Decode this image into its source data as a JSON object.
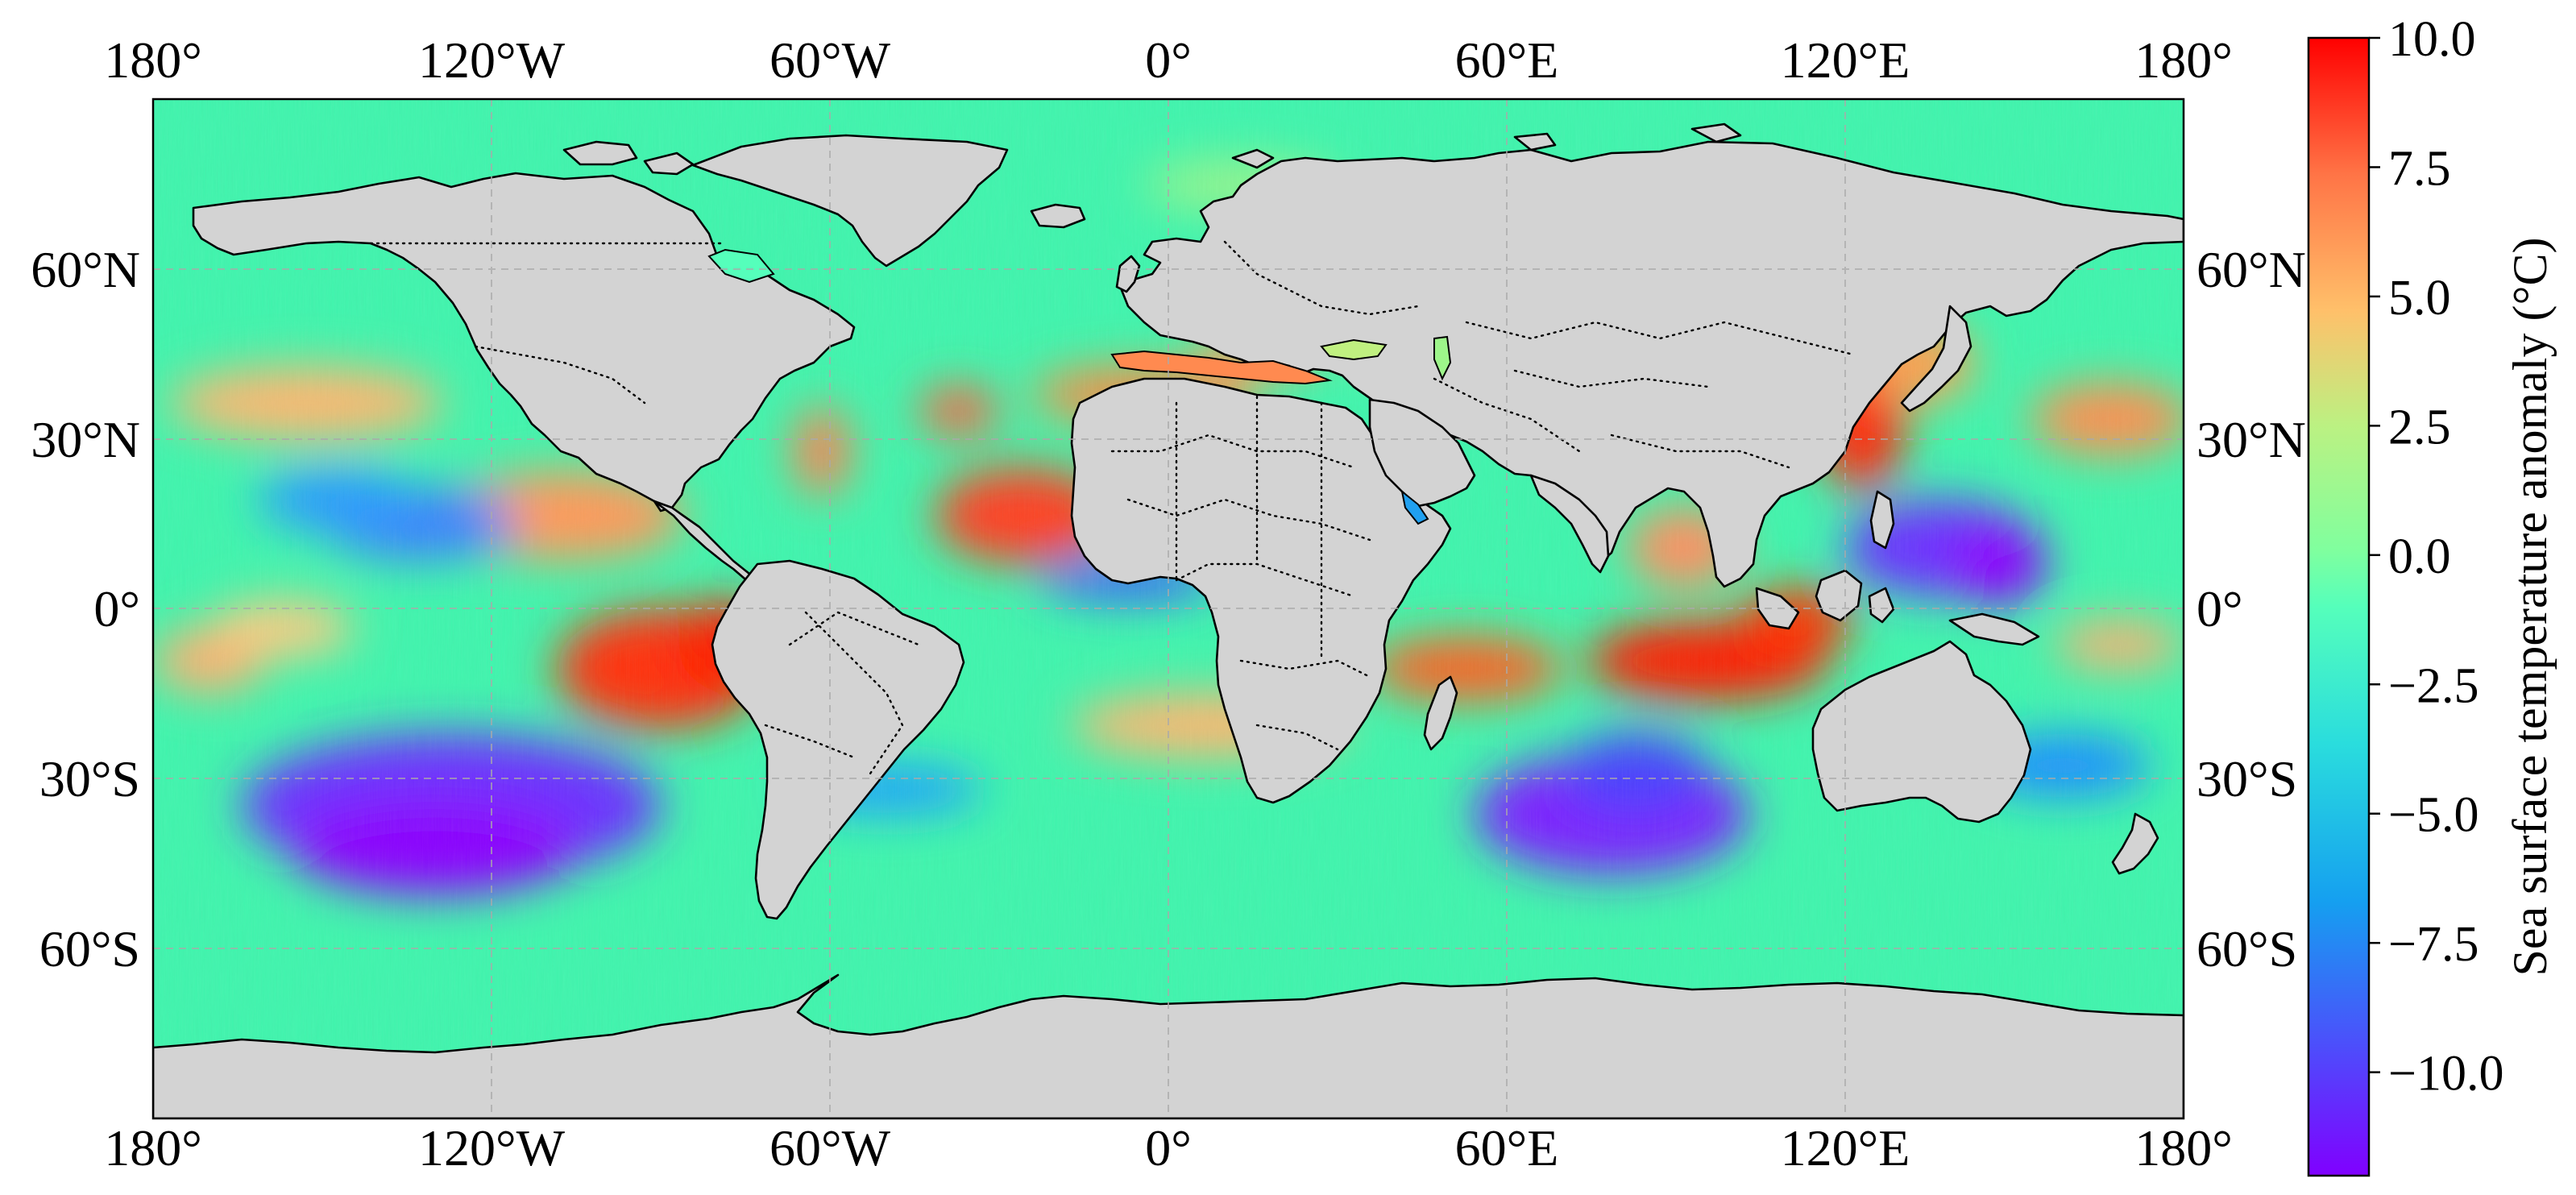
{
  "map": {
    "projection": "PlateCarree",
    "extent_lon": [
      -180,
      180
    ],
    "extent_lat": [
      -90,
      90
    ],
    "land_color": "#d3d3d3",
    "coastline_color": "#000000",
    "borders_style": "dotted",
    "gridlines": "dashed-grey",
    "lon_ticks_top": [
      "180°",
      "120°W",
      "60°W",
      "0°",
      "60°E",
      "120°E",
      "180°"
    ],
    "lon_ticks_bottom": [
      "180°",
      "120°W",
      "60°W",
      "0°",
      "60°E",
      "120°E",
      "180°"
    ],
    "lat_ticks_left": [
      "60°N",
      "30°N",
      "0°",
      "30°S",
      "60°S"
    ],
    "lat_ticks_right": [
      "60°N",
      "30°N",
      "0°",
      "30°S",
      "60°S"
    ],
    "lon_values": [
      -180,
      -120,
      -60,
      0,
      60,
      120,
      180
    ],
    "lat_values": [
      60,
      30,
      0,
      -30,
      -60
    ]
  },
  "colorbar": {
    "label": "Sea surface temperature anomaly (°C)",
    "colormap": "rainbow",
    "vmin": -12,
    "vmax": 10,
    "tick_values": [
      10,
      7.5,
      5,
      2.5,
      0,
      -2.5,
      -5,
      -7.5,
      -10
    ],
    "tick_labels": [
      "10.0",
      "7.5",
      "5.0",
      "2.5",
      "0.0",
      "−2.5",
      "−5.0",
      "−7.5",
      "−10.0"
    ]
  }
}
